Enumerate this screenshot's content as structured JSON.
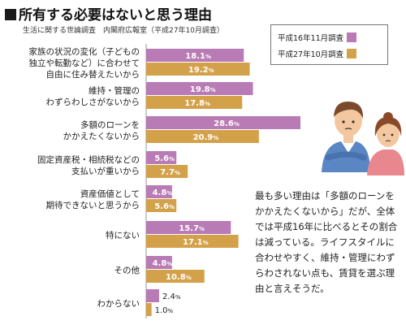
{
  "title": "所有する必要はないと思う理由",
  "subtitle": "生活に関する世論調査　内閣府広報室（平成27年10月調査）",
  "legend": {
    "series_a": "平成16年11月調査",
    "series_b": "平成27年10月調査"
  },
  "note": "最も多い理由は「多額のローンをかかえたくないから」だが、全体では平成16年に比べるとその割合は減っている。ライフスタイルに合わせやすく、維持・管理にわずらわされない点も、賃貸を選ぶ理由と言えそうだ。",
  "colors": {
    "series_a": "#b97bb5",
    "series_b": "#d4a14b"
  },
  "chart_data": {
    "type": "bar",
    "orientation": "horizontal",
    "title": "所有する必要はないと思う理由",
    "categories": [
      [
        "家族の状況の変化（子どもの",
        "独立や転勤など）に合わせて",
        "自由に住み替えたいから"
      ],
      [
        "維持・管理の",
        "わずらわしさがないから"
      ],
      [
        "多額のローンを",
        "かかえたくないから"
      ],
      [
        "固定資産税・相続税などの",
        "支払いが重いから"
      ],
      [
        "資産価値として",
        "期待できないと思うから"
      ],
      [
        "特にない"
      ],
      [
        "その他"
      ],
      [
        "わからない"
      ]
    ],
    "series": [
      {
        "name": "平成16年11月調査",
        "values": [
          18.1,
          19.8,
          28.6,
          5.6,
          4.8,
          15.7,
          4.8,
          2.4
        ]
      },
      {
        "name": "平成27年10月調査",
        "values": [
          19.2,
          17.8,
          20.9,
          7.7,
          5.6,
          17.1,
          10.8,
          1.0
        ]
      }
    ],
    "value_suffix": "%",
    "xlim": [
      0,
      35
    ],
    "grid": false,
    "legend_position": "top-right"
  }
}
